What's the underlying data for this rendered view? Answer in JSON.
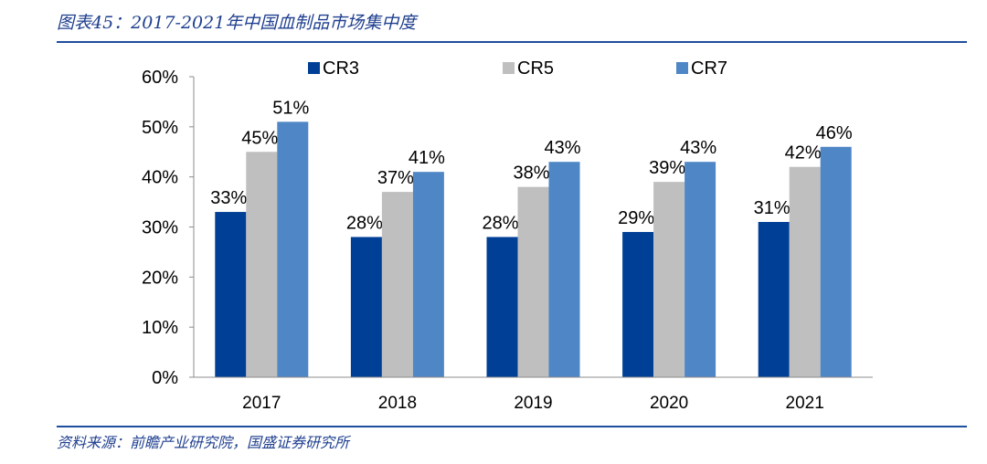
{
  "figure": {
    "title": "图表45：2017-2021年中国血制品市场集中度",
    "source": "资料来源：前瞻产业研究院，国盛证券研究所"
  },
  "chart_data": {
    "type": "bar",
    "categories": [
      "2017",
      "2018",
      "2019",
      "2020",
      "2021"
    ],
    "series": [
      {
        "name": "CR3",
        "color": "#003f96",
        "values": [
          33,
          28,
          28,
          29,
          31
        ],
        "labels": [
          "33%",
          "28%",
          "28%",
          "29%",
          "31%"
        ]
      },
      {
        "name": "CR5",
        "color": "#bfbfbf",
        "values": [
          45,
          37,
          38,
          39,
          42
        ],
        "labels": [
          "45%",
          "37%",
          "38%",
          "39%",
          "42%"
        ]
      },
      {
        "name": "CR7",
        "color": "#4f86c6",
        "values": [
          51,
          41,
          43,
          43,
          46
        ],
        "labels": [
          "51%",
          "41%",
          "43%",
          "43%",
          "46%"
        ]
      }
    ],
    "ylim": [
      0,
      60
    ],
    "yticks": [
      0,
      10,
      20,
      30,
      40,
      50,
      60
    ],
    "ytick_labels": [
      "0%",
      "10%",
      "20%",
      "30%",
      "40%",
      "50%",
      "60%"
    ],
    "xlabel": "",
    "ylabel": "",
    "legend_position": "top",
    "grid": false
  }
}
